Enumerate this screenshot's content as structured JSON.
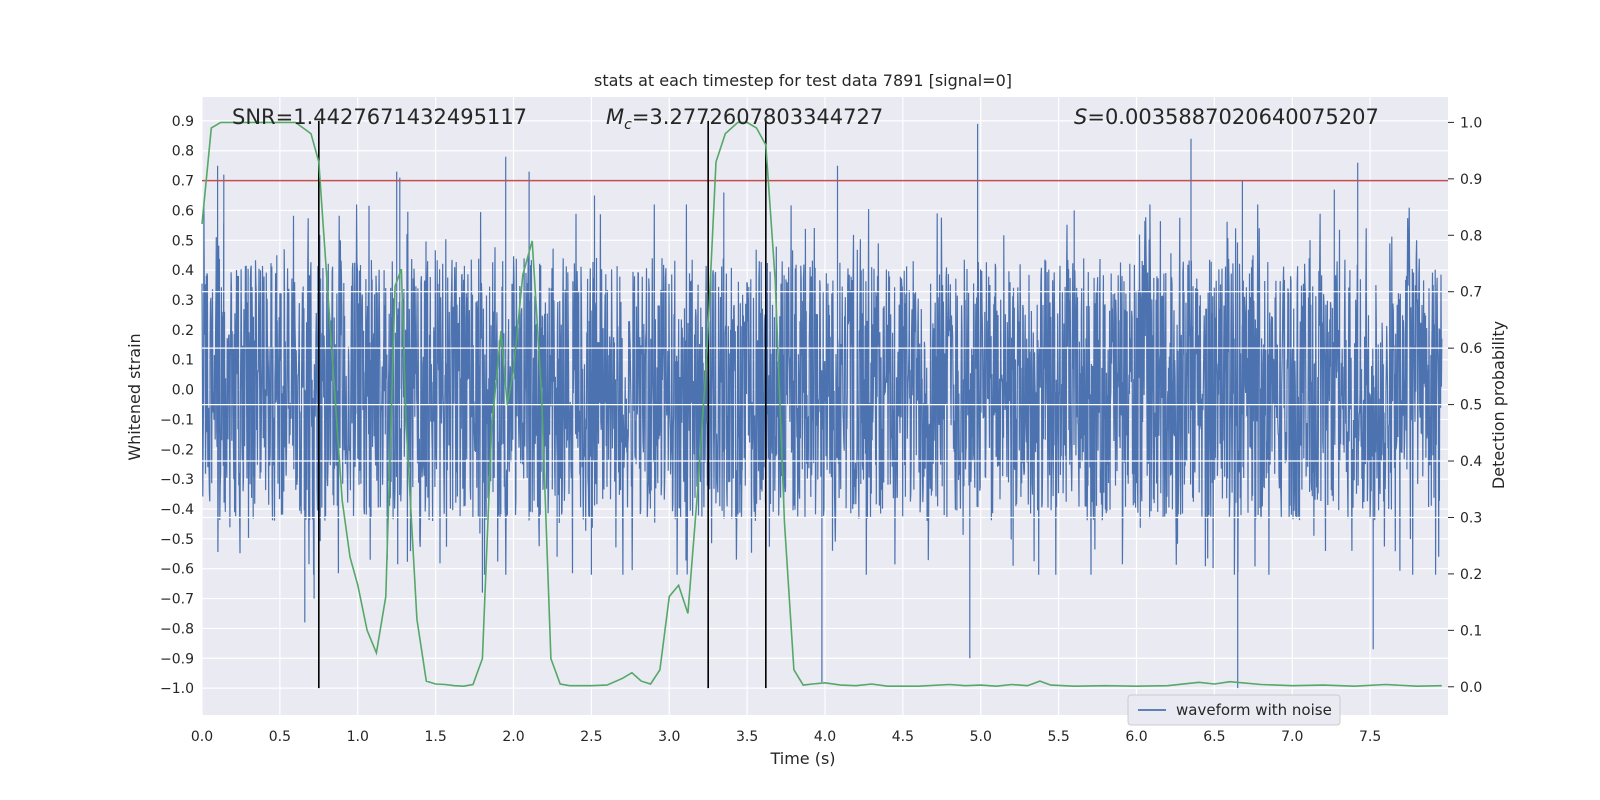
{
  "chart_data": {
    "type": "line",
    "title": "stats at each timestep for test data 7891 [signal=0]",
    "xlabel": "Time (s)",
    "ylabel_left": "Whitened strain",
    "ylabel_right": "Detection probability",
    "xlim": [
      0.0,
      8.0
    ],
    "ylim_left": [
      -1.09,
      0.98
    ],
    "ylim_right": [
      -0.05,
      1.045
    ],
    "x_ticks": [
      "0.0",
      "0.5",
      "1.0",
      "1.5",
      "2.0",
      "2.5",
      "3.0",
      "3.5",
      "4.0",
      "4.5",
      "5.0",
      "5.5",
      "6.0",
      "6.5",
      "7.0",
      "7.5"
    ],
    "left_ticks": [
      "0.9",
      "0.8",
      "0.7",
      "0.6",
      "0.5",
      "0.4",
      "0.3",
      "0.2",
      "0.1",
      "0.0",
      "−0.1",
      "−0.2",
      "−0.3",
      "−0.4",
      "−0.5",
      "−0.6",
      "−0.7",
      "−0.8",
      "−0.9",
      "−1.0"
    ],
    "right_ticks": [
      "1.0",
      "0.9",
      "0.8",
      "0.7",
      "0.6",
      "0.5",
      "0.4",
      "0.3",
      "0.2",
      "0.1",
      "0.0"
    ],
    "annotations": {
      "snr": "SNR=1.4427671432495117",
      "mc_symbol": "M",
      "mc_sub": "c",
      "mc_value": "=3.2772607803344727",
      "s_symbol": "S",
      "s_value": "=0.0035887020640075207"
    },
    "threshold": 0.7,
    "vlines": [
      0.75,
      3.25,
      3.62
    ],
    "legend": {
      "label": "waveform with noise",
      "position": "lower-right"
    },
    "series": [
      {
        "name": "waveform with noise",
        "axis": "left",
        "color": "#4c72b0",
        "envelope": "noise band roughly ±0.45 with spikes to about 0.9 and −1.0",
        "spikes": [
          [
            0.1,
            0.75
          ],
          [
            0.14,
            0.72
          ],
          [
            0.48,
            0.45
          ],
          [
            1.25,
            0.73
          ],
          [
            1.27,
            0.71
          ],
          [
            1.95,
            0.78
          ],
          [
            2.1,
            0.73
          ],
          [
            2.28,
            -0.56
          ],
          [
            2.52,
            0.65
          ],
          [
            3.35,
            0.66
          ],
          [
            3.98,
            -0.98
          ],
          [
            4.08,
            0.75
          ],
          [
            4.93,
            -0.9
          ],
          [
            4.98,
            0.89
          ],
          [
            5.6,
            0.6
          ],
          [
            6.35,
            0.84
          ],
          [
            6.65,
            -1.0
          ],
          [
            6.68,
            0.7
          ],
          [
            7.27,
            0.67
          ],
          [
            7.42,
            0.76
          ],
          [
            7.52,
            -0.87
          ],
          [
            0.72,
            -0.7
          ],
          [
            0.66,
            -0.78
          ],
          [
            1.8,
            -0.68
          ],
          [
            2.5,
            -0.62
          ]
        ]
      },
      {
        "name": "detection probability",
        "axis": "right",
        "color": "#55a868",
        "x": [
          0.0,
          0.06,
          0.12,
          0.2,
          0.3,
          0.4,
          0.5,
          0.55,
          0.6,
          0.65,
          0.7,
          0.75,
          0.8,
          0.85,
          0.9,
          0.95,
          1.0,
          1.06,
          1.12,
          1.18,
          1.24,
          1.28,
          1.31,
          1.38,
          1.44,
          1.5,
          1.56,
          1.62,
          1.68,
          1.74,
          1.8,
          1.86,
          1.92,
          1.96,
          2.0,
          2.06,
          2.12,
          2.18,
          2.24,
          2.3,
          2.36,
          2.5,
          2.6,
          2.7,
          2.76,
          2.82,
          2.88,
          2.94,
          3.0,
          3.06,
          3.12,
          3.18,
          3.24,
          3.3,
          3.36,
          3.44,
          3.5,
          3.56,
          3.62,
          3.68,
          3.74,
          3.8,
          3.86,
          3.92,
          4.0,
          4.1,
          4.2,
          4.3,
          4.4,
          4.6,
          4.8,
          4.9,
          5.0,
          5.1,
          5.2,
          5.3,
          5.38,
          5.45,
          5.6,
          5.8,
          6.0,
          6.2,
          6.4,
          6.5,
          6.6,
          6.8,
          7.0,
          7.2,
          7.4,
          7.6,
          7.8,
          7.96
        ],
        "y": [
          0.82,
          0.99,
          1.0,
          1.0,
          1.0,
          1.0,
          1.0,
          1.0,
          1.0,
          0.99,
          0.98,
          0.93,
          0.73,
          0.53,
          0.33,
          0.23,
          0.18,
          0.1,
          0.06,
          0.16,
          0.71,
          0.74,
          0.47,
          0.12,
          0.01,
          0.005,
          0.004,
          0.002,
          0.001,
          0.004,
          0.05,
          0.46,
          0.63,
          0.5,
          0.56,
          0.73,
          0.79,
          0.52,
          0.05,
          0.005,
          0.002,
          0.002,
          0.003,
          0.015,
          0.025,
          0.01,
          0.005,
          0.03,
          0.16,
          0.18,
          0.13,
          0.34,
          0.58,
          0.93,
          0.98,
          1.0,
          1.0,
          0.99,
          0.96,
          0.72,
          0.29,
          0.03,
          0.003,
          0.005,
          0.007,
          0.003,
          0.002,
          0.005,
          0.001,
          0.001,
          0.004,
          0.002,
          0.003,
          0.001,
          0.004,
          0.002,
          0.01,
          0.003,
          0.001,
          0.002,
          0.001,
          0.002,
          0.008,
          0.005,
          0.009,
          0.004,
          0.002,
          0.003,
          0.001,
          0.004,
          0.001,
          0.002
        ]
      }
    ]
  }
}
